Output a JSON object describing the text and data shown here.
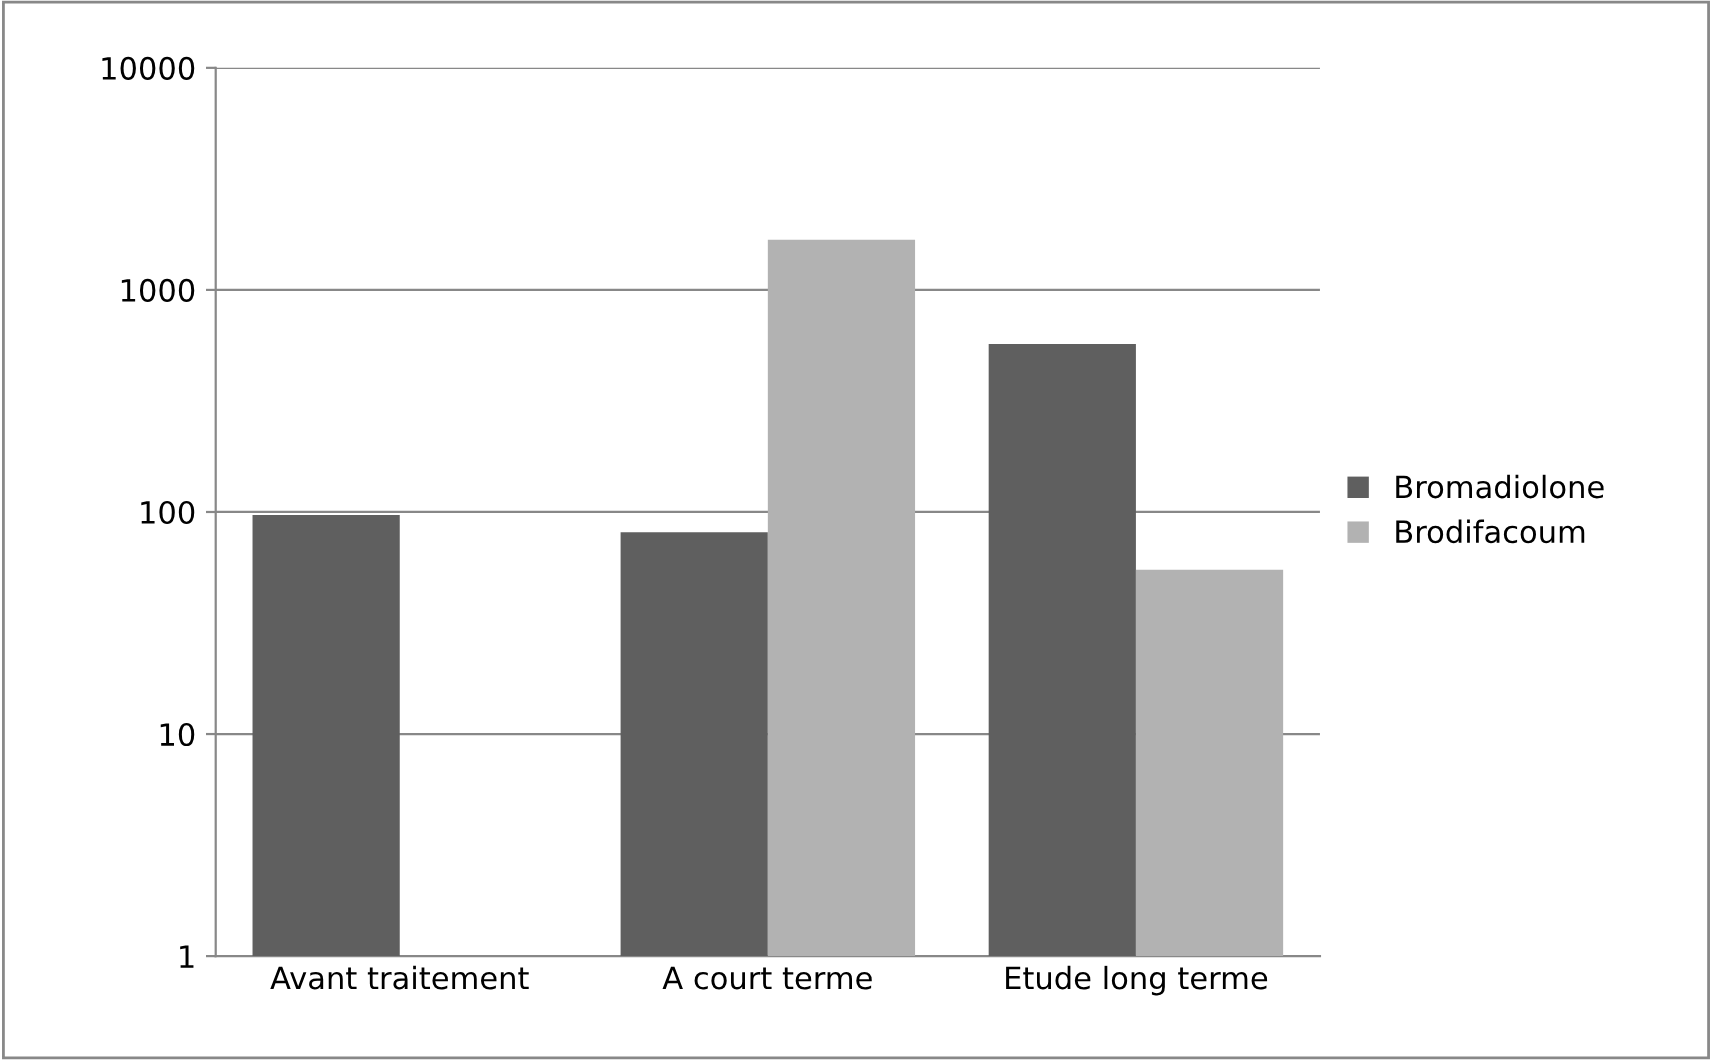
{
  "chart_data": {
    "type": "bar",
    "categories": [
      "Avant traitement",
      "A court terme",
      "Etude long terme"
    ],
    "series": [
      {
        "name": "Bromadiolone",
        "color": "#5f5f5f",
        "values": [
          96,
          80,
          570
        ]
      },
      {
        "name": "Brodifacoum",
        "color": "#b2b2b2",
        "values": [
          null,
          1680,
          54
        ]
      }
    ],
    "log": "y",
    "ylim": [
      1,
      10000
    ],
    "yticks": [
      1,
      10,
      100,
      1000,
      10000
    ],
    "grid": "y",
    "legend": "right"
  }
}
